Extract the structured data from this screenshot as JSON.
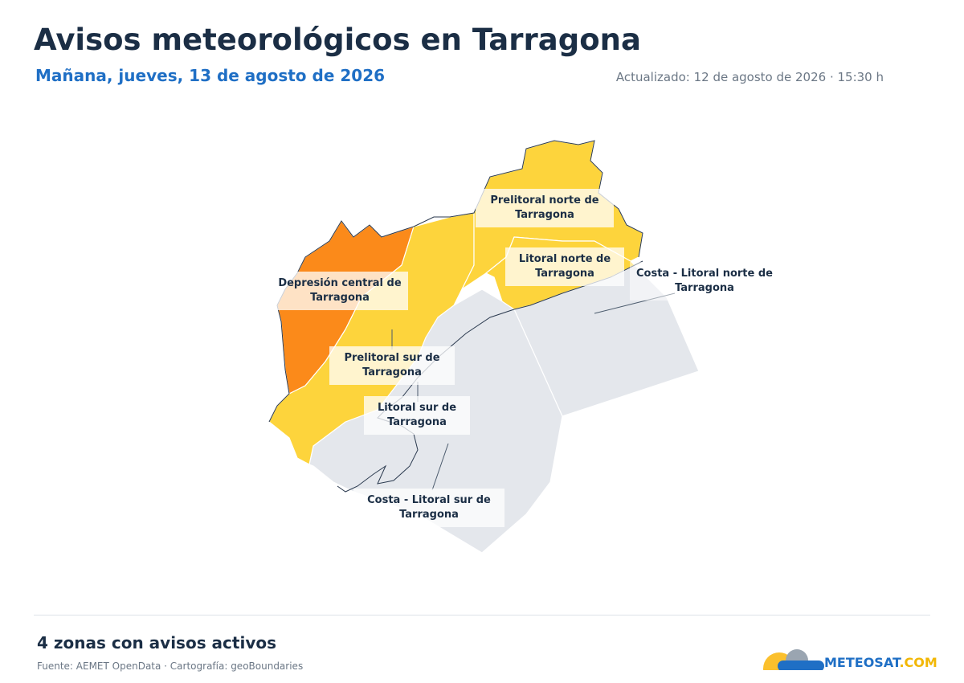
{
  "header": {
    "title": "Avisos meteorológicos en Tarragona",
    "subtitle": "Mañana, jueves, 13 de agosto de 2026",
    "updated": "Actualizado: 12 de agosto de 2026 · 15:30 h"
  },
  "map": {
    "zones": [
      {
        "label": "Prelitoral norte de Tarragona"
      },
      {
        "label": "Litoral norte de Tarragona"
      },
      {
        "label": "Costa - Litoral norte de Tarragona"
      },
      {
        "label": "Depresión central de Tarragona"
      },
      {
        "label": "Prelitoral sur de Tarragona"
      },
      {
        "label": "Litoral sur de Tarragona"
      },
      {
        "label": "Costa - Litoral sur de Tarragona"
      }
    ]
  },
  "footer": {
    "summary": "4 zonas con avisos activos",
    "source": "Fuente: AEMET OpenData · Cartografía: geoBoundaries",
    "logo_main": "METEOSAT",
    "logo_suffix": ".COM"
  }
}
